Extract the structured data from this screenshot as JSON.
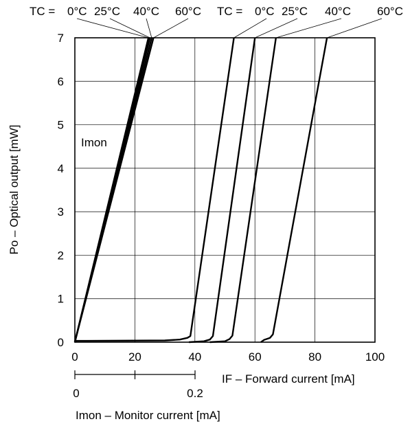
{
  "chart_data": {
    "type": "line",
    "xlabel": "IF – Forward current [mA]",
    "ylabel": "Po – Optical output [mW]",
    "xlim": [
      0,
      100
    ],
    "ylim": [
      0,
      7
    ],
    "xticks": [
      "0",
      "20",
      "40",
      "60",
      "80",
      "100"
    ],
    "yticks": [
      "0",
      "1",
      "2",
      "3",
      "4",
      "5",
      "6",
      "7"
    ],
    "grid": true,
    "annotation": "Imon",
    "secondary_axis": {
      "label": "Imon – Monitor current [mA]",
      "ticks": [
        "0",
        "0.2"
      ],
      "range": [
        0,
        0.2
      ]
    },
    "monitor_legend": {
      "prefix": "TC = ",
      "labels": [
        "0°C",
        "25°C",
        "40°C",
        "60°C"
      ]
    },
    "forward_legend": {
      "prefix": "TC = ",
      "labels": [
        "0°C",
        "25°C",
        "40°C",
        "60°C"
      ]
    },
    "monitor_series": [
      {
        "temperature": "0°C",
        "x": [
          0,
          0.1,
          24.5
        ],
        "y": [
          0,
          0.03,
          7
        ]
      },
      {
        "temperature": "25°C",
        "x": [
          0,
          0.1,
          25.0
        ],
        "y": [
          0,
          0.03,
          7
        ]
      },
      {
        "temperature": "40°C",
        "x": [
          0,
          0.1,
          25.6
        ],
        "y": [
          0,
          0.03,
          7
        ]
      },
      {
        "temperature": "60°C",
        "x": [
          0,
          0.1,
          26.2
        ],
        "y": [
          0,
          0.03,
          7
        ]
      }
    ],
    "forward_series": [
      {
        "temperature": "0°C",
        "x": [
          0,
          0.5,
          30,
          35,
          37.5,
          38.5,
          53
        ],
        "y": [
          0,
          0.03,
          0.04,
          0.06,
          0.1,
          0.14,
          7
        ]
      },
      {
        "temperature": "25°C",
        "x": [
          38,
          43,
          45,
          46,
          60
        ],
        "y": [
          0,
          0.02,
          0.06,
          0.14,
          7
        ]
      },
      {
        "temperature": "40°C",
        "x": [
          45,
          50,
          51.5,
          52.5,
          67
        ],
        "y": [
          0,
          0.02,
          0.07,
          0.15,
          7
        ]
      },
      {
        "temperature": "60°C",
        "x": [
          62,
          63,
          65,
          66,
          84
        ],
        "y": [
          0,
          0.05,
          0.1,
          0.18,
          7
        ]
      }
    ]
  }
}
